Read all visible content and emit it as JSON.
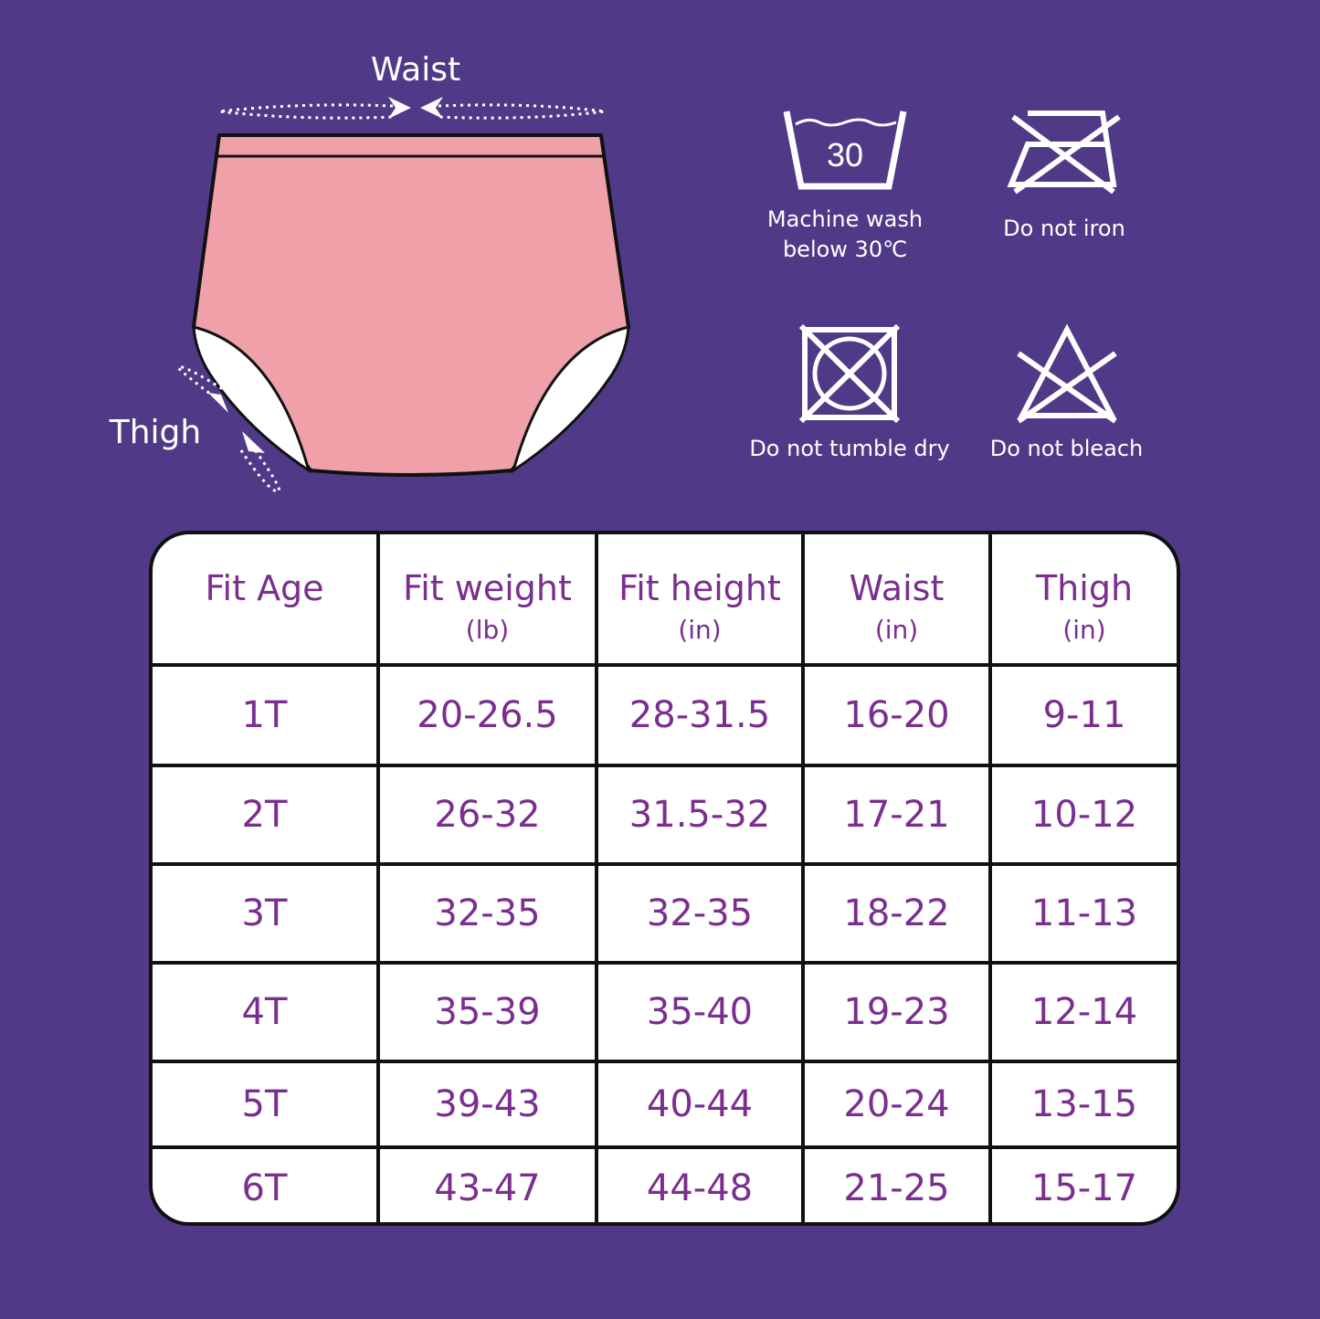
{
  "diagram": {
    "waist_label": "Waist",
    "thigh_label": "Thigh",
    "colors": {
      "background": "#503a88",
      "garment": "#f0a0a8",
      "accent_text": "#7a2e8e"
    }
  },
  "care": [
    {
      "icon": "wash-30-icon",
      "number": "30",
      "line1": "Machine wash",
      "line2": "below 30℃"
    },
    {
      "icon": "no-iron-icon",
      "line1": "Do not iron"
    },
    {
      "icon": "no-tumble-dry-icon",
      "line1": "Do not tumble dry"
    },
    {
      "icon": "no-bleach-icon",
      "line1": "Do not bleach"
    }
  ],
  "table": {
    "headers": [
      {
        "label": "Fit Age",
        "unit": ""
      },
      {
        "label": "Fit weight",
        "unit": "(lb)"
      },
      {
        "label": "Fit height",
        "unit": "(in)"
      },
      {
        "label": "Waist",
        "unit": "(in)"
      },
      {
        "label": "Thigh",
        "unit": "(in)"
      }
    ],
    "rows": [
      [
        "1T",
        "20-26.5",
        "28-31.5",
        "16-20",
        "9-11"
      ],
      [
        "2T",
        "26-32",
        "31.5-32",
        "17-21",
        "10-12"
      ],
      [
        "3T",
        "32-35",
        "32-35",
        "18-22",
        "11-13"
      ],
      [
        "4T",
        "35-39",
        "35-40",
        "19-23",
        "12-14"
      ],
      [
        "5T",
        "39-43",
        "40-44",
        "20-24",
        "13-15"
      ],
      [
        "6T",
        "43-47",
        "44-48",
        "21-25",
        "15-17"
      ]
    ]
  }
}
